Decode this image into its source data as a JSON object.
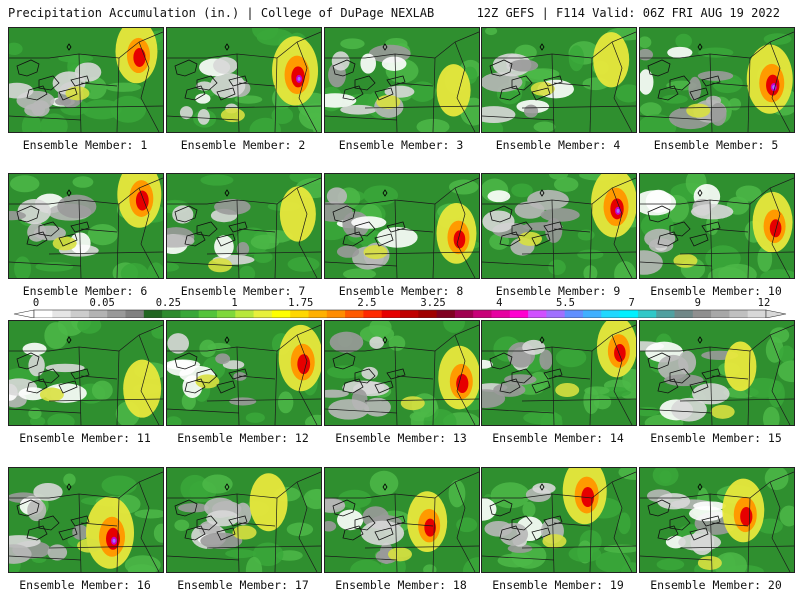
{
  "header": {
    "title_left": "Precipitation Accumulation (in.) | College of DuPage NEXLAB",
    "title_right": "12Z GEFS | F114 Valid: 06Z FRI AUG 19 2022"
  },
  "label_prefix": "Ensemble Member: ",
  "members": [
    {
      "id": 1,
      "label": "Ensemble Member: 1",
      "heavy": 0.7
    },
    {
      "id": 2,
      "label": "Ensemble Member: 2",
      "heavy": 0.9
    },
    {
      "id": 3,
      "label": "Ensemble Member: 3",
      "heavy": 0.3
    },
    {
      "id": 4,
      "label": "Ensemble Member: 4",
      "heavy": 0.4
    },
    {
      "id": 5,
      "label": "Ensemble Member: 5",
      "heavy": 0.9
    },
    {
      "id": 6,
      "label": "Ensemble Member: 6",
      "heavy": 0.8
    },
    {
      "id": 7,
      "label": "Ensemble Member: 7",
      "heavy": 0.4
    },
    {
      "id": 8,
      "label": "Ensemble Member: 8",
      "heavy": 0.6
    },
    {
      "id": 9,
      "label": "Ensemble Member: 9",
      "heavy": 0.9
    },
    {
      "id": 10,
      "label": "Ensemble Member: 10",
      "heavy": 0.6
    },
    {
      "id": 11,
      "label": "Ensemble Member: 11",
      "heavy": 0.5
    },
    {
      "id": 12,
      "label": "Ensemble Member: 12",
      "heavy": 0.8
    },
    {
      "id": 13,
      "label": "Ensemble Member: 13",
      "heavy": 0.7
    },
    {
      "id": 14,
      "label": "Ensemble Member: 14",
      "heavy": 0.6
    },
    {
      "id": 15,
      "label": "Ensemble Member: 15",
      "heavy": 0.2
    },
    {
      "id": 16,
      "label": "Ensemble Member: 16",
      "heavy": 1.0
    },
    {
      "id": 17,
      "label": "Ensemble Member: 17",
      "heavy": 0.5
    },
    {
      "id": 18,
      "label": "Ensemble Member: 18",
      "heavy": 0.6
    },
    {
      "id": 19,
      "label": "Ensemble Member: 19",
      "heavy": 0.8
    },
    {
      "id": 20,
      "label": "Ensemble Member: 20",
      "heavy": 0.7
    }
  ],
  "colorbar": {
    "colors": [
      "#ffffff",
      "#e6e6e6",
      "#cccccc",
      "#b3b3b3",
      "#999999",
      "#808080",
      "#226622",
      "#2e8b2e",
      "#3aa83a",
      "#55c43c",
      "#7fd83c",
      "#b8e83c",
      "#e8f03c",
      "#ffff00",
      "#ffd700",
      "#ffb000",
      "#ff8c00",
      "#ff5a00",
      "#ff2a00",
      "#e60000",
      "#c00000",
      "#a00000",
      "#800020",
      "#a00050",
      "#c80078",
      "#e600a0",
      "#ff00d0",
      "#d050ff",
      "#a070ff",
      "#6090ff",
      "#40b0ff",
      "#20d8ff",
      "#00f0ff",
      "#30c8c8",
      "#50a0a0",
      "#708888",
      "#909090",
      "#a8a8a8",
      "#c0c0c0",
      "#d8d8d8"
    ],
    "ticks": [
      {
        "label": "0",
        "index": 0
      },
      {
        "label": "0.05",
        "index": 4
      },
      {
        "label": "0.25",
        "index": 8
      },
      {
        "label": "1",
        "index": 12
      },
      {
        "label": "1.75",
        "index": 16
      },
      {
        "label": "2.5",
        "index": 20
      },
      {
        "label": "3.25",
        "index": 24
      },
      {
        "label": "4",
        "index": 28
      },
      {
        "label": "5.5",
        "index": 32
      },
      {
        "label": "7",
        "index": 36
      },
      {
        "label": "9",
        "index": 40
      },
      {
        "label": "12",
        "index": 44
      }
    ]
  }
}
